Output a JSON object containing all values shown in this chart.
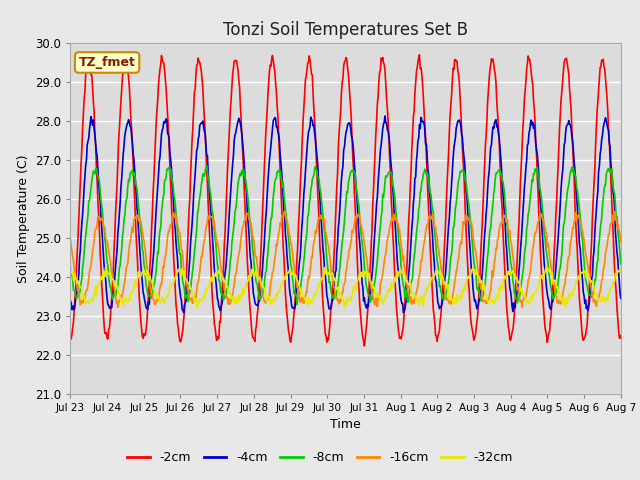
{
  "title": "Tonzi Soil Temperatures Set B",
  "xlabel": "Time",
  "ylabel": "Soil Temperature (C)",
  "ylim": [
    21.0,
    30.0
  ],
  "yticks": [
    21.0,
    22.0,
    23.0,
    24.0,
    25.0,
    26.0,
    27.0,
    28.0,
    29.0,
    30.0
  ],
  "bg_color": "#e8e8e8",
  "plot_bg_color": "#dcdcdc",
  "series_colors": [
    "#ff0000",
    "#0000cc",
    "#00cc00",
    "#ff8800",
    "#e8e800"
  ],
  "series_labels": [
    "-2cm",
    "-4cm",
    "-8cm",
    "-16cm",
    "-32cm"
  ],
  "annotation_text": "TZ_fmet",
  "annotation_bg": "#ffffcc",
  "annotation_border": "#cc8800",
  "n_days": 15,
  "points_per_day": 48,
  "amplitudes": [
    3.6,
    2.4,
    1.65,
    1.1,
    0.38
  ],
  "means": [
    26.0,
    25.6,
    25.1,
    24.45,
    23.75
  ],
  "phase_shifts_days": [
    0.0,
    0.08,
    0.18,
    0.32,
    0.5
  ],
  "tick_labels": [
    "Jul 23",
    "Jul 24",
    "Jul 25",
    "Jul 26",
    "Jul 27",
    "Jul 28",
    "Jul 29",
    "Jul 30",
    "Jul 31",
    "Aug 1",
    "Aug 2",
    "Aug 3",
    "Aug 4",
    "Aug 5",
    "Aug 6",
    "Aug 7"
  ]
}
